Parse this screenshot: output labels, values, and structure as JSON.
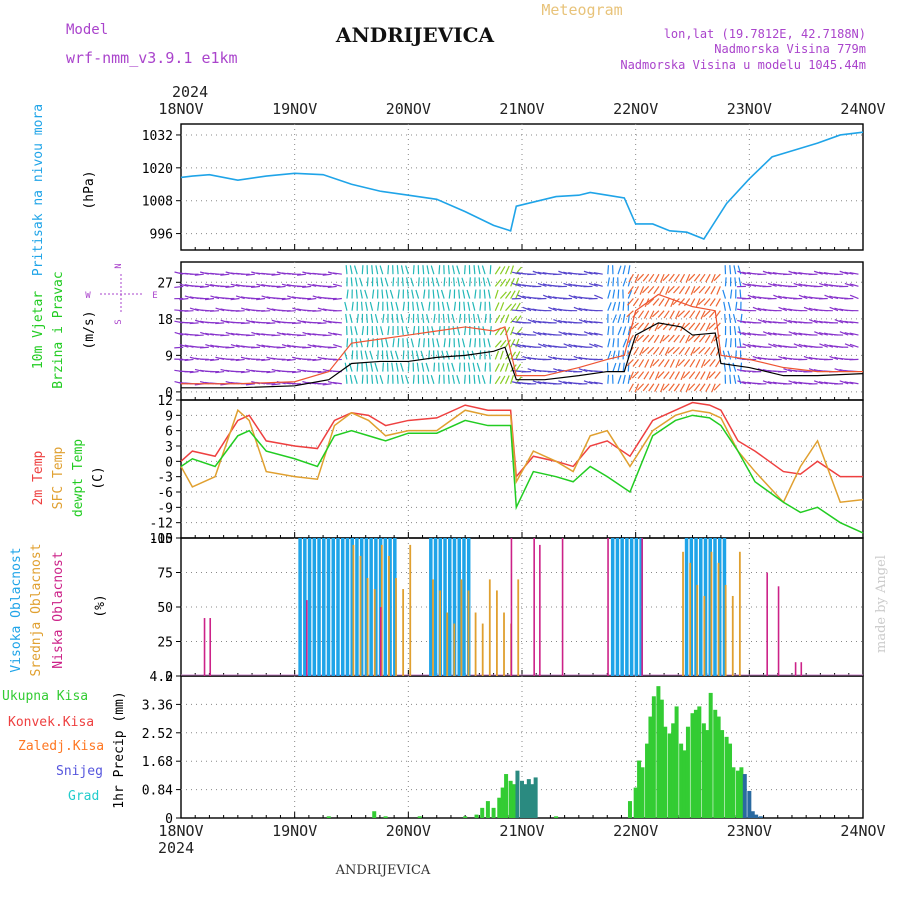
{
  "header": {
    "model_label": "Model",
    "model_name": "wrf-nmm_v3.9.1 e1km",
    "station": "ANDRIJEVICA",
    "product": "Meteogram",
    "lonlat": "lon,lat (19.7812E, 42.7188N)",
    "altitude": "Nadmorska Visina 779m",
    "model_altitude": "Nadmorska Visina u modelu 1045.44m",
    "year_top": "2024",
    "year_bottom": "2024",
    "footer_station": "ANDRIJEVICA",
    "credit": "made by Angel"
  },
  "colors": {
    "pressure": "#1fa4e8",
    "temp2m": "#ee4040",
    "sfc_temp": "#e0a030",
    "dewpt": "#22cc22",
    "high_cloud": "#1fa4e8",
    "mid_cloud": "#e0a030",
    "low_cloud": "#cc2288",
    "total_precip": "#33cc33",
    "conv_precip": "#ee4040",
    "frozen_precip": "#ff7722",
    "snow": "#5555dd",
    "graupel": "#22cccc",
    "wind_calm": "#8833cc",
    "gust_line": "#ee5533",
    "speed_line": "#000000"
  },
  "chart_data": [
    {
      "type": "line",
      "panel": "pressure",
      "ylabel_main": "Pritisak na nivou mora",
      "ylabel_unit": "(hPa)",
      "ylim": [
        990,
        1036
      ],
      "yticks": [
        996,
        1008,
        1020,
        1032
      ],
      "grid": true,
      "x_days": [
        0,
        0.1,
        0.25,
        0.5,
        0.75,
        1.0,
        1.25,
        1.5,
        1.75,
        2.0,
        2.25,
        2.5,
        2.75,
        2.9,
        2.95,
        3.1,
        3.3,
        3.5,
        3.6,
        3.75,
        3.9,
        4.0,
        4.15,
        4.3,
        4.45,
        4.6,
        4.8,
        5.0,
        5.2,
        5.4,
        5.6,
        5.8,
        6.0
      ],
      "series": [
        {
          "values": [
            1016.5,
            1017.0,
            1017.5,
            1015.5,
            1017.0,
            1018.0,
            1017.5,
            1014.0,
            1011.5,
            1010.0,
            1008.5,
            1004.0,
            999.0,
            997.0,
            1006.0,
            1007.5,
            1009.5,
            1010.0,
            1011.0,
            1010.0,
            1009.0,
            999.5,
            999.5,
            997.0,
            996.5,
            994.0,
            1007.0,
            1016.0,
            1024.0,
            1026.5,
            1029.0,
            1032.0,
            1033.0
          ]
        }
      ]
    },
    {
      "type": "line",
      "panel": "wind",
      "ylabel_main": "10m Vjetar",
      "ylabel_sub": "Brzina i Pravac",
      "ylabel_unit": "(m/s)",
      "compass_labels": [
        "W",
        "E",
        "N",
        "S"
      ],
      "ylim": [
        -2,
        32
      ],
      "yticks": [
        0,
        9,
        18,
        27
      ],
      "grid": true,
      "x_days": [
        0,
        0.5,
        1.0,
        1.3,
        1.5,
        1.75,
        2.0,
        2.25,
        2.5,
        2.75,
        2.85,
        2.95,
        3.2,
        3.5,
        3.75,
        3.9,
        4.0,
        4.2,
        4.4,
        4.5,
        4.7,
        4.75,
        5.0,
        5.3,
        5.6,
        6.0
      ],
      "series": [
        {
          "name": "speed",
          "values": [
            1.0,
            1.0,
            1.5,
            3.0,
            7.0,
            7.5,
            7.5,
            8.5,
            9.0,
            10.0,
            11.0,
            3.0,
            3.0,
            4.0,
            5.0,
            5.0,
            14.0,
            17.0,
            16.0,
            14.0,
            14.5,
            7.0,
            6.0,
            4.0,
            4.0,
            4.5
          ]
        },
        {
          "name": "gust",
          "values": [
            2.0,
            2.0,
            2.5,
            5.0,
            12.0,
            13.0,
            14.0,
            15.0,
            16.0,
            15.0,
            16.0,
            4.0,
            4.0,
            6.0,
            8.0,
            9.0,
            20.0,
            24.0,
            22.0,
            21.0,
            20.0,
            9.0,
            8.0,
            6.0,
            5.0,
            5.0
          ]
        }
      ],
      "wind_band_note": "direction arrows coloured by speed"
    },
    {
      "type": "line",
      "panel": "temperature",
      "ylabel_lines": [
        "2m Temp",
        "SFC Temp",
        "dewpt Temp"
      ],
      "ylabel_unit": "(C)",
      "ylim": [
        -15,
        12
      ],
      "yticks": [
        -15,
        -12,
        -9,
        -6,
        -3,
        0,
        3,
        6,
        9,
        12
      ],
      "grid": true,
      "x_days": [
        0,
        0.1,
        0.3,
        0.5,
        0.6,
        0.75,
        1.0,
        1.2,
        1.35,
        1.5,
        1.65,
        1.8,
        2.0,
        2.25,
        2.5,
        2.7,
        2.9,
        2.95,
        3.1,
        3.3,
        3.45,
        3.6,
        3.75,
        3.95,
        4.15,
        4.35,
        4.5,
        4.65,
        4.75,
        4.9,
        5.05,
        5.3,
        5.45,
        5.6,
        5.8,
        6.0
      ],
      "series": [
        {
          "name": "2m Temp",
          "values": [
            0.0,
            2.0,
            1.0,
            8.0,
            9.0,
            4.0,
            3.0,
            2.5,
            8.0,
            9.5,
            9.0,
            7.0,
            8.0,
            8.5,
            11.0,
            10.0,
            10.0,
            -3.0,
            1.0,
            0.0,
            -1.0,
            3.0,
            4.0,
            1.0,
            8.0,
            10.0,
            11.5,
            11.0,
            10.0,
            4.0,
            2.0,
            -2.0,
            -2.5,
            0.0,
            -3.0,
            -3.0
          ]
        },
        {
          "name": "SFC Temp",
          "values": [
            -1.0,
            -5.0,
            -3.0,
            10.0,
            8.0,
            -2.0,
            -3.0,
            -3.5,
            7.0,
            9.5,
            8.0,
            5.0,
            6.0,
            6.0,
            10.0,
            9.0,
            9.0,
            -4.0,
            2.0,
            0.0,
            -2.0,
            5.0,
            6.0,
            -1.0,
            6.0,
            9.0,
            10.0,
            9.5,
            8.5,
            2.0,
            -2.0,
            -8.0,
            -1.0,
            4.0,
            -8.0,
            -7.5
          ]
        },
        {
          "name": "dewpt Temp",
          "values": [
            -1.0,
            0.5,
            -1.0,
            5.0,
            6.0,
            2.0,
            0.5,
            -1.0,
            5.0,
            6.0,
            5.0,
            4.0,
            5.5,
            5.5,
            8.0,
            7.0,
            7.0,
            -9.0,
            -2.0,
            -3.0,
            -4.0,
            -1.0,
            -3.0,
            -6.0,
            5.0,
            8.0,
            9.0,
            8.5,
            7.0,
            2.0,
            -4.0,
            -8.0,
            -10.0,
            -9.0,
            -12.0,
            -14.0
          ]
        }
      ]
    },
    {
      "type": "bar",
      "panel": "cloud",
      "ylabel_lines": [
        "Visoka Oblacnost",
        "Srednja Oblacnost",
        "Niska Oblacnost"
      ],
      "ylabel_unit": "(%)",
      "ylim": [
        0,
        100
      ],
      "yticks": [
        0,
        25,
        50,
        75,
        100
      ],
      "grid": true,
      "high_cloud_blocks": [
        [
          1.05,
          1.9,
          100
        ],
        [
          2.2,
          2.55,
          100
        ],
        [
          3.8,
          4.08,
          100
        ],
        [
          4.45,
          4.8,
          100
        ]
      ],
      "mid_cloud_blocks": [
        [
          1.5,
          2.0,
          95
        ],
        [
          2.2,
          2.95,
          70
        ],
        [
          4.4,
          4.9,
          90
        ]
      ],
      "low_cloud_spikes": [
        [
          0.2,
          42
        ],
        [
          0.25,
          42
        ],
        [
          1.1,
          55
        ],
        [
          1.75,
          50
        ],
        [
          2.9,
          100
        ],
        [
          3.1,
          100
        ],
        [
          3.15,
          95
        ],
        [
          3.35,
          100
        ],
        [
          3.75,
          100
        ],
        [
          4.05,
          100
        ],
        [
          5.15,
          75
        ],
        [
          5.25,
          65
        ],
        [
          5.4,
          10
        ],
        [
          5.45,
          10
        ]
      ]
    },
    {
      "type": "bar",
      "panel": "precip",
      "ylabel_lines": [
        "Ukupna Kisa",
        "Konvek.Kisa",
        "Zaledj.Kisa",
        "Snijeg",
        "Grad"
      ],
      "ylabel_unit": "1hr Precip (mm)",
      "ylim": [
        0,
        4.2
      ],
      "yticks": [
        0,
        0.84,
        1.68,
        2.52,
        3.36,
        4.2
      ],
      "grid": true,
      "x_days": [
        1.3,
        1.7,
        1.8,
        2.1,
        2.5,
        2.6,
        2.65,
        2.7,
        2.75,
        2.8,
        2.83,
        2.86,
        2.9,
        2.93,
        2.96,
        3.0,
        3.03,
        3.06,
        3.09,
        3.12,
        3.3,
        3.95,
        4.0,
        4.03,
        4.06,
        4.1,
        4.13,
        4.16,
        4.2,
        4.23,
        4.26,
        4.3,
        4.33,
        4.36,
        4.4,
        4.43,
        4.46,
        4.5,
        4.53,
        4.56,
        4.6,
        4.63,
        4.66,
        4.7,
        4.73,
        4.76,
        4.8,
        4.83,
        4.86,
        4.9,
        4.93,
        4.96,
        5.0,
        5.03,
        5.06,
        5.1
      ],
      "series": [
        {
          "name": "Ukupna Kisa",
          "values": [
            0.05,
            0.2,
            0.05,
            0.05,
            0.05,
            0.1,
            0.3,
            0.5,
            0.3,
            0.6,
            0.9,
            1.3,
            1.1,
            1.0,
            1.4,
            1.1,
            1.0,
            1.15,
            1.0,
            1.2,
            0.05,
            0.5,
            0.9,
            1.7,
            1.5,
            2.2,
            3.0,
            3.6,
            3.9,
            3.5,
            2.7,
            2.5,
            2.8,
            3.3,
            2.2,
            2.0,
            2.7,
            3.1,
            3.2,
            3.3,
            2.8,
            2.6,
            3.7,
            3.2,
            3.0,
            2.6,
            2.4,
            2.2,
            1.5,
            1.4,
            1.5,
            1.3,
            0.8,
            0.2,
            0.1,
            0.05
          ]
        }
      ]
    }
  ],
  "x_axis": {
    "ticks": [
      "18NOV",
      "19NOV",
      "20NOV",
      "21NOV",
      "22NOV",
      "23NOV",
      "24NOV"
    ]
  }
}
